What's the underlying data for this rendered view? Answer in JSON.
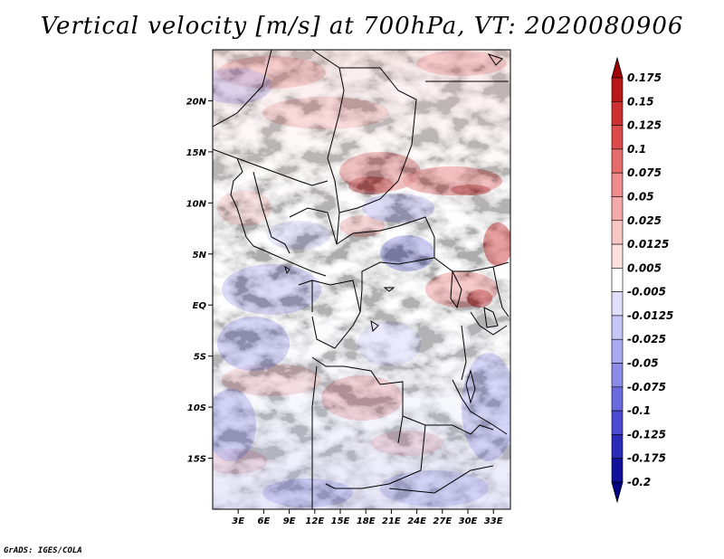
{
  "title": "Vertical velocity [m/s] at 700hPa, VT: 2020080906",
  "credit": "GrADS: IGES/COLA",
  "map": {
    "lon_range": [
      0,
      35
    ],
    "lat_range": [
      -20,
      25
    ],
    "lon_ticks": [
      "3E",
      "6E",
      "9E",
      "12E",
      "15E",
      "18E",
      "21E",
      "24E",
      "27E",
      "30E",
      "33E"
    ],
    "lat_ticks": [
      "20N",
      "15N",
      "10N",
      "5N",
      "EQ",
      "5S",
      "10S",
      "15S"
    ]
  },
  "colorbar": {
    "labels": [
      "0.175",
      "0.15",
      "0.125",
      "0.1",
      "0.075",
      "0.05",
      "0.025",
      "0.0125",
      "0.005",
      "-0.005",
      "-0.0125",
      "-0.025",
      "-0.05",
      "-0.075",
      "-0.1",
      "-0.125",
      "-0.175",
      "-0.2"
    ],
    "colors": [
      "#a00000",
      "#b81818",
      "#cc3030",
      "#dc4a4a",
      "#e66c6c",
      "#ef8c8c",
      "#f5aaaa",
      "#f9c6c6",
      "#fce0e0",
      "#ffffff",
      "#e0e0fc",
      "#c6c6f8",
      "#aaaaf2",
      "#8c8ce8",
      "#6a6ade",
      "#4a4ad0",
      "#2a2ab8",
      "#10109a",
      "#000080"
    ]
  }
}
